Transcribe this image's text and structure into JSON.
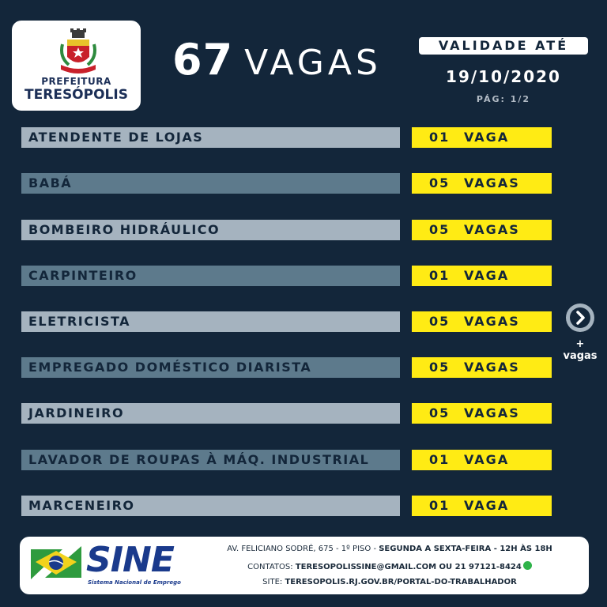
{
  "logo": {
    "line1": "PREFEITURA",
    "line2": "TERESÓPOLIS"
  },
  "headline": {
    "count": "67",
    "word": "VAGAS"
  },
  "validity": {
    "label": "VALIDADE ATÉ",
    "date": "19/10/2020",
    "page": "PÁG: 1/2"
  },
  "jobs": [
    {
      "title": "ATENDENTE DE LOJAS",
      "qty": "01",
      "unit": "VAGA"
    },
    {
      "title": "BABÁ",
      "qty": "05",
      "unit": "VAGAS"
    },
    {
      "title": "BOMBEIRO HIDRÁULICO",
      "qty": "05",
      "unit": "VAGAS"
    },
    {
      "title": "CARPINTEIRO",
      "qty": "01",
      "unit": "VAGA"
    },
    {
      "title": "ELETRICISTA",
      "qty": "05",
      "unit": "VAGAS"
    },
    {
      "title": "EMPREGADO DOMÉSTICO DIARISTA",
      "qty": "05",
      "unit": "VAGAS"
    },
    {
      "title": "JARDINEIRO",
      "qty": "05",
      "unit": "VAGAS"
    },
    {
      "title": "LAVADOR DE ROUPAS À MÁQ. INDUSTRIAL",
      "qty": "01",
      "unit": "VAGA"
    },
    {
      "title": "MARCENEIRO",
      "qty": "01",
      "unit": "VAGA"
    }
  ],
  "more": {
    "icon": "chevron-right-icon",
    "plus": "+",
    "label": "vagas"
  },
  "footer": {
    "brand": "SINE",
    "brand_sub": "Sistema Nacional de Emprego",
    "address": "AV. FELICIANO SODRÉ, 675 - 1º PISO",
    "hours": "SEGUNDA A SEXTA-FEIRA - 12H ÀS 18H",
    "contacts_label": "CONTATOS:",
    "contacts": "TERESOPOLISSINE@GMAIL.COM OU 21 97121-8424",
    "site_label": "SITE:",
    "site": "TERESOPOLIS.RJ.GOV.BR/PORTAL-DO-TRABALHADOR"
  },
  "colors": {
    "background": "#13263a",
    "highlight": "#ffeb14",
    "row_light": "#a5b3bf",
    "row_dark": "#5d7a8c",
    "brand_blue": "#1a3a8c",
    "brand_green": "#2e9b3e"
  }
}
